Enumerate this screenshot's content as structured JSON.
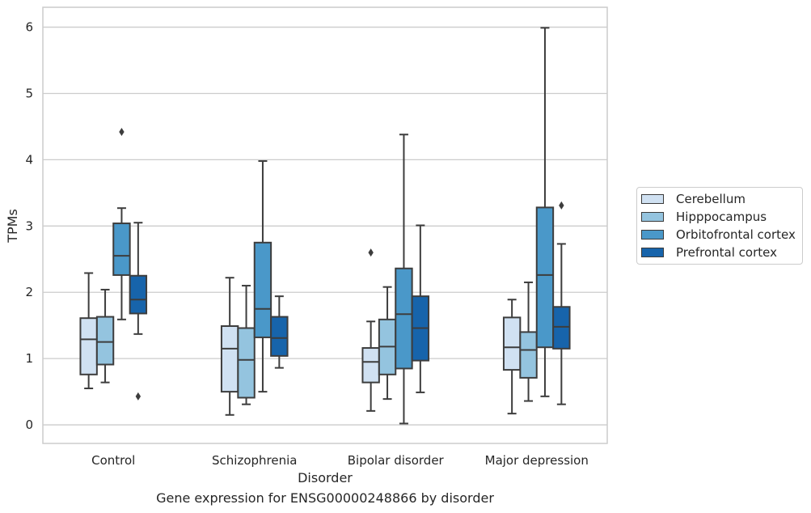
{
  "chart_data": {
    "type": "box",
    "title": "",
    "caption": "Gene expression for ENSG00000248866 by disorder",
    "xlabel": "Disorder",
    "ylabel": "TPMs",
    "ylim": [
      -0.28,
      6.3
    ],
    "yticks": [
      0,
      1,
      2,
      3,
      4,
      5,
      6
    ],
    "grid": "horizontal",
    "legend_position": "right",
    "categories": [
      "Control",
      "Schizophrenia",
      "Bipolar disorder",
      "Major depression"
    ],
    "series": [
      {
        "name": "Cerebellum",
        "color": "#d0e1f2",
        "boxes": [
          {
            "whislo": 0.55,
            "q1": 0.76,
            "med": 1.29,
            "q3": 1.61,
            "whishi": 2.29,
            "fliers": []
          },
          {
            "whislo": 0.15,
            "q1": 0.5,
            "med": 1.15,
            "q3": 1.49,
            "whishi": 2.22,
            "fliers": []
          },
          {
            "whislo": 0.21,
            "q1": 0.64,
            "med": 0.95,
            "q3": 1.16,
            "whishi": 1.56,
            "fliers": [
              2.6
            ]
          },
          {
            "whislo": 0.17,
            "q1": 0.83,
            "med": 1.17,
            "q3": 1.62,
            "whishi": 1.89,
            "fliers": []
          }
        ]
      },
      {
        "name": "Hipppocampus",
        "color": "#94c4df",
        "boxes": [
          {
            "whislo": 0.64,
            "q1": 0.91,
            "med": 1.25,
            "q3": 1.63,
            "whishi": 2.04,
            "fliers": []
          },
          {
            "whislo": 0.31,
            "q1": 0.41,
            "med": 0.98,
            "q3": 1.46,
            "whishi": 2.1,
            "fliers": []
          },
          {
            "whislo": 0.39,
            "q1": 0.76,
            "med": 1.18,
            "q3": 1.59,
            "whishi": 2.08,
            "fliers": []
          },
          {
            "whislo": 0.36,
            "q1": 0.71,
            "med": 1.13,
            "q3": 1.4,
            "whishi": 2.15,
            "fliers": []
          }
        ]
      },
      {
        "name": "Orbitofrontal cortex",
        "color": "#4a98c9",
        "boxes": [
          {
            "whislo": 1.59,
            "q1": 2.26,
            "med": 2.55,
            "q3": 3.04,
            "whishi": 3.27,
            "fliers": [
              4.42
            ]
          },
          {
            "whislo": 0.5,
            "q1": 1.32,
            "med": 1.75,
            "q3": 2.75,
            "whishi": 3.98,
            "fliers": []
          },
          {
            "whislo": 0.02,
            "q1": 0.85,
            "med": 1.67,
            "q3": 2.36,
            "whishi": 4.38,
            "fliers": []
          },
          {
            "whislo": 0.43,
            "q1": 1.17,
            "med": 2.26,
            "q3": 3.28,
            "whishi": 5.99,
            "fliers": []
          }
        ]
      },
      {
        "name": "Prefrontal cortex",
        "color": "#1764ab",
        "boxes": [
          {
            "whislo": 1.37,
            "q1": 1.68,
            "med": 1.89,
            "q3": 2.25,
            "whishi": 3.05,
            "fliers": [
              0.43
            ]
          },
          {
            "whislo": 0.86,
            "q1": 1.04,
            "med": 1.31,
            "q3": 1.63,
            "whishi": 1.94,
            "fliers": []
          },
          {
            "whislo": 0.49,
            "q1": 0.97,
            "med": 1.46,
            "q3": 1.94,
            "whishi": 3.01,
            "fliers": []
          },
          {
            "whislo": 0.31,
            "q1": 1.15,
            "med": 1.48,
            "q3": 1.78,
            "whishi": 2.73,
            "fliers": [
              3.31
            ]
          }
        ]
      }
    ]
  }
}
